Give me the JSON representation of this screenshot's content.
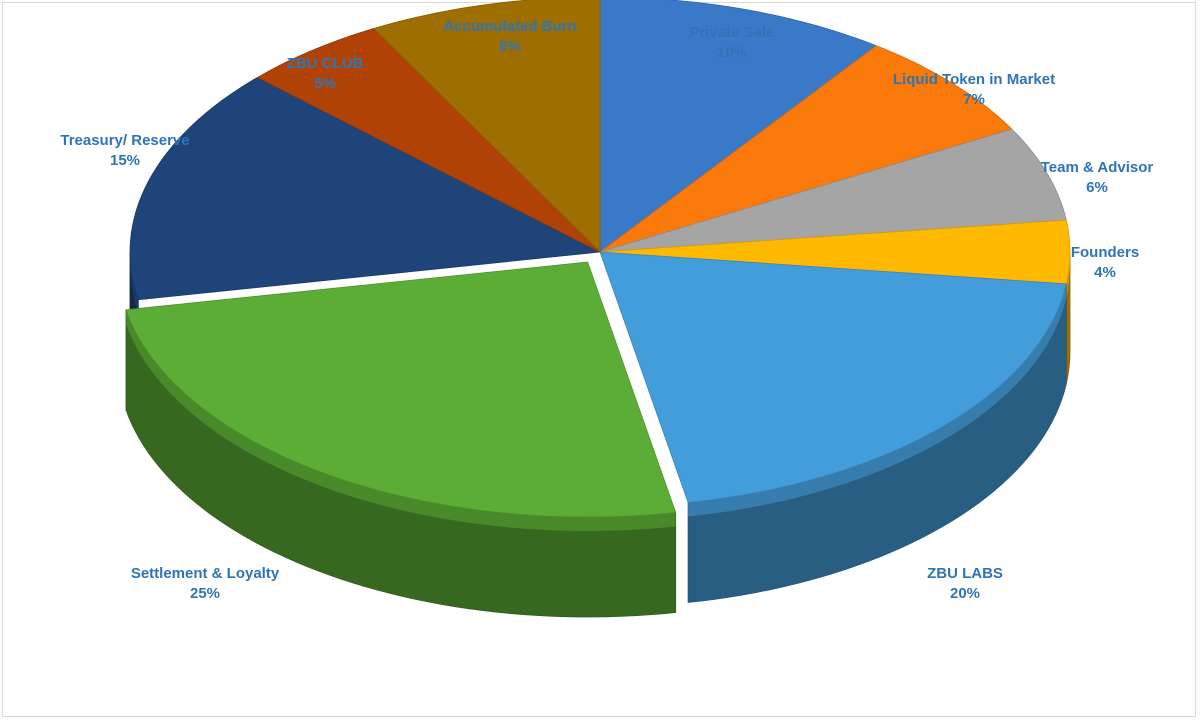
{
  "chart_data": {
    "type": "pie",
    "title": "",
    "categories": [
      "Private Sale",
      "Liquid Token in Market",
      "Team & Advisor",
      "Founders",
      "ZBU LABS",
      "Settlement & Loyalty",
      "Treasury/ Reserve",
      "ZBU CLUB",
      "Accumulated Burn"
    ],
    "values": [
      10,
      7,
      6,
      4,
      20,
      25,
      15,
      5,
      8
    ],
    "value_labels": [
      "10%",
      "7%",
      "6%",
      "4%",
      "20%",
      "25%",
      "15%",
      "5%",
      "8%"
    ],
    "colors": [
      "#3a78c8",
      "#f97a0b",
      "#a5a5a5",
      "#ffb900",
      "#449ddb",
      "#5cad35",
      "#1e4479",
      "#b04205",
      "#9e6e00"
    ],
    "style": "3d-exploded-slices",
    "legend": "none",
    "label_color": "#2e75b6"
  }
}
